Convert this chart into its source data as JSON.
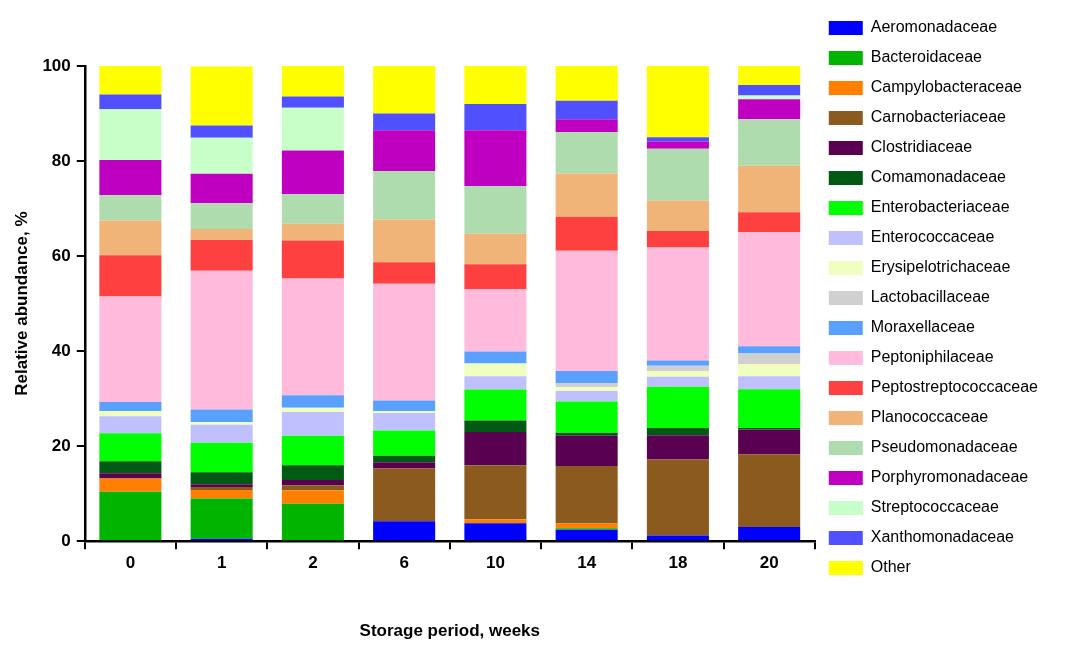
{
  "chart_data": {
    "type": "bar",
    "stacked": true,
    "xlabel": "Storage period, weeks",
    "ylabel": "Relative abundance, %",
    "categories": [
      "0",
      "1",
      "2",
      "6",
      "10",
      "14",
      "18",
      "20"
    ],
    "ylim": [
      0,
      100
    ],
    "yticks": [
      0,
      20,
      40,
      60,
      80,
      100
    ],
    "grid": false,
    "legend": "right",
    "series": [
      {
        "name": "Aeromonadaceae",
        "color": "#0000ff",
        "values": [
          0,
          0.5,
          0,
          4.2,
          3.8,
          2.4,
          1.2,
          3
        ]
      },
      {
        "name": "Bacteroidaceae",
        "color": "#00b400",
        "values": [
          10.4,
          8.5,
          7.9,
          0,
          0,
          0.3,
          0,
          0
        ]
      },
      {
        "name": "Campylobacteraceae",
        "color": "#ff8000",
        "values": [
          2.8,
          1.8,
          2.8,
          0,
          0.8,
          1,
          0,
          0
        ]
      },
      {
        "name": "Carnobacteriaceae",
        "color": "#8b5a1e",
        "values": [
          0,
          0.6,
          1.1,
          11.1,
          11.4,
          12.1,
          16,
          15.3
        ]
      },
      {
        "name": "Clostridiaceae",
        "color": "#5a0050",
        "values": [
          1.1,
          0.6,
          1.1,
          1.3,
          7,
          6.4,
          5.1,
          5.2
        ]
      },
      {
        "name": "Comamonadaceae",
        "color": "#005a14",
        "values": [
          2.5,
          2.5,
          3.1,
          1.4,
          2.4,
          0.6,
          1.5,
          0.3
        ]
      },
      {
        "name": "Enterobacteriaceae",
        "color": "#00ff00",
        "values": [
          5.9,
          6.2,
          6.2,
          5.3,
          6.5,
          6.6,
          8.7,
          8.2
        ]
      },
      {
        "name": "Enterococcaceae",
        "color": "#c0c0ff",
        "values": [
          3.6,
          3.8,
          5,
          3.7,
          2.8,
          2.2,
          2.1,
          2.7
        ]
      },
      {
        "name": "Erysipelotrichaceae",
        "color": "#f0ffc0",
        "values": [
          1.1,
          0.6,
          0.9,
          0.4,
          2.7,
          0.8,
          1.2,
          2.6
        ]
      },
      {
        "name": "Lactobacillaceae",
        "color": "#d0d0d0",
        "values": [
          0,
          0,
          0,
          0,
          0,
          0.9,
          1.1,
          2.2
        ]
      },
      {
        "name": "Moraxellaceae",
        "color": "#5aa0ff",
        "values": [
          1.9,
          2.6,
          2.6,
          2.2,
          2.5,
          2.5,
          1.1,
          1.5
        ]
      },
      {
        "name": "Peptoniphilaceae",
        "color": "#ffbadc",
        "values": [
          22.2,
          29.2,
          24.6,
          24.6,
          13.1,
          25.3,
          23.8,
          24
        ]
      },
      {
        "name": "Peptostreptococcaceae",
        "color": "#ff4040",
        "values": [
          8.7,
          6.5,
          8,
          4.5,
          5.3,
          7.2,
          3.5,
          4.2
        ]
      },
      {
        "name": "Planococcaceae",
        "color": "#f0b478",
        "values": [
          7.3,
          2.3,
          3.5,
          9,
          6.4,
          9.1,
          6.4,
          9.8
        ]
      },
      {
        "name": "Pseudomonadaceae",
        "color": "#aedcae",
        "values": [
          5.3,
          5.4,
          6.2,
          10.2,
          10,
          8.7,
          10.9,
          9.8
        ]
      },
      {
        "name": "Porphyromonadaceae",
        "color": "#c000c0",
        "values": [
          7.4,
          6.2,
          9.2,
          8.6,
          11.8,
          2.7,
          1.5,
          4.2
        ]
      },
      {
        "name": "Streptococcaceae",
        "color": "#c8ffc8",
        "values": [
          10.7,
          7.6,
          9,
          0,
          0,
          0,
          0,
          0.8
        ]
      },
      {
        "name": "Xanthomonadaceae",
        "color": "#5050ff",
        "values": [
          3.1,
          2.6,
          2.4,
          3.5,
          5.5,
          3.9,
          0.9,
          2.2
        ]
      },
      {
        "name": "Other",
        "color": "#ffff00",
        "values": [
          6,
          12.4,
          6.4,
          10,
          8,
          7.3,
          15,
          4
        ]
      }
    ]
  }
}
